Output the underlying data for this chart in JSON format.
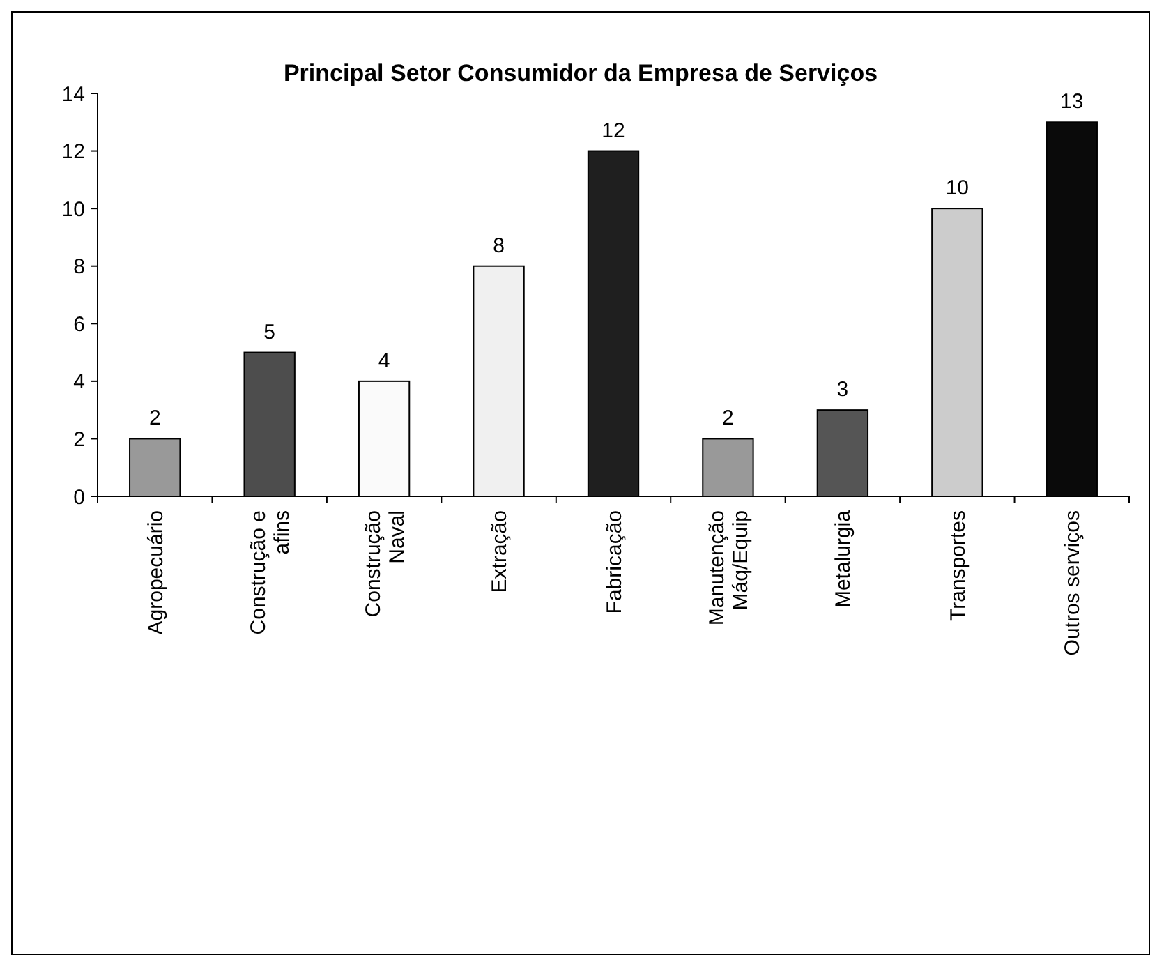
{
  "chart_data": {
    "type": "bar",
    "title": "Principal Setor Consumidor da Empresa de Serviços",
    "categories": [
      "Agropecuário",
      "Construção e\nafins",
      "Construção\nNaval",
      "Extração",
      "Fabricação",
      "Manutenção\nMáq/Equip",
      "Metalurgia",
      "Transportes",
      "Outros serviços"
    ],
    "values": [
      2,
      5,
      4,
      8,
      12,
      2,
      3,
      10,
      13
    ],
    "colors": [
      "#999999",
      "#4d4d4d",
      "#fafafa",
      "#f0f0f0",
      "#1f1f1f",
      "#999999",
      "#555555",
      "#cccccc",
      "#0a0a0a"
    ],
    "ylim": [
      0,
      14
    ],
    "yticks": [
      0,
      2,
      4,
      6,
      8,
      10,
      12,
      14
    ],
    "grid": false,
    "data_labels": true
  }
}
